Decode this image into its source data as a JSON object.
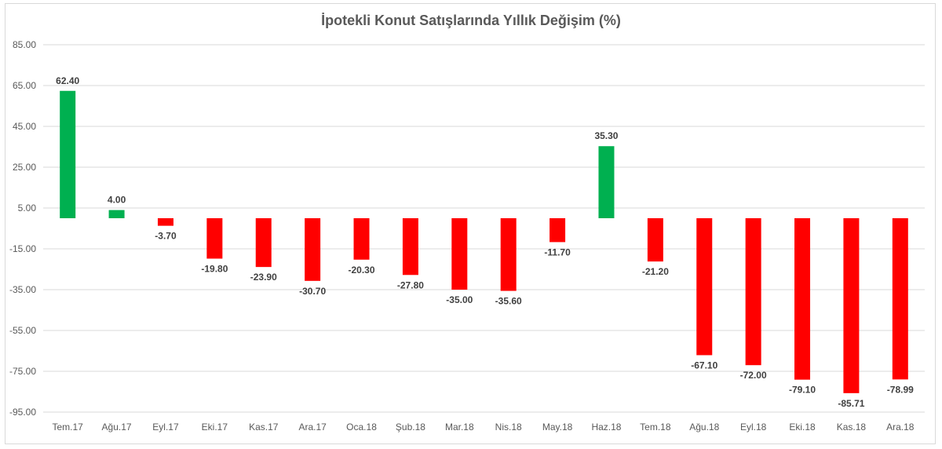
{
  "chart_data": {
    "type": "bar",
    "title": "İpotekli Konut Satışlarında Yıllık Değişim (%)",
    "categories": [
      "Tem.17",
      "Ağu.17",
      "Eyl.17",
      "Eki.17",
      "Kas.17",
      "Ara.17",
      "Oca.18",
      "Şub.18",
      "Mar.18",
      "Nis.18",
      "May.18",
      "Haz.18",
      "Tem.18",
      "Ağu.18",
      "Eyl.18",
      "Eki.18",
      "Kas.18",
      "Ara.18"
    ],
    "values": [
      62.4,
      4.0,
      -3.7,
      -19.8,
      -23.9,
      -30.7,
      -20.3,
      -27.8,
      -35.0,
      -35.6,
      -11.7,
      35.3,
      -21.2,
      -67.1,
      -72.0,
      -79.1,
      -85.71,
      -78.99
    ],
    "data_labels": [
      "62.40",
      "4.00",
      "-3.70",
      "-19.80",
      "-23.90",
      "-30.70",
      "-20.30",
      "-27.80",
      "-35.00",
      "-35.60",
      "-11.70",
      "35.30",
      "-21.20",
      "-67.10",
      "-72.00",
      "-79.10",
      "-85.71",
      "-78.99"
    ],
    "y_ticks": [
      85,
      65,
      45,
      25,
      5,
      -15,
      -35,
      -55,
      -75,
      -95
    ],
    "y_tick_labels": [
      "85.00",
      "65.00",
      "45.00",
      "25.00",
      "5.00",
      "-15.00",
      "-35.00",
      "-55.00",
      "-75.00",
      "-95.00"
    ],
    "ylim": [
      -95,
      85
    ],
    "xlabel": "",
    "ylabel": "",
    "grid": true,
    "legend": "none",
    "colors": {
      "positive": "#00b050",
      "negative": "#ff0000",
      "grid": "#d9d9d9",
      "text": "#595959",
      "label": "#404040"
    }
  }
}
